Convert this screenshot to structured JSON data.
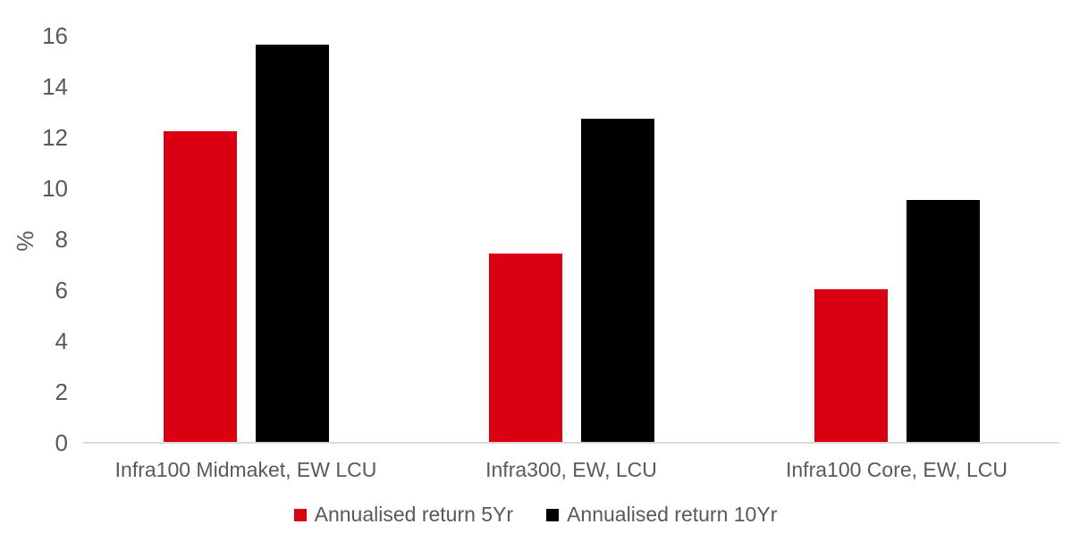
{
  "chart_data": {
    "type": "bar",
    "title": "",
    "categories": [
      "Infra100 Midmaket, EW LCU",
      "Infra300, EW, LCU",
      "Infra100 Core, EW, LCU"
    ],
    "series": [
      {
        "name": "Annualised return 5Yr",
        "color": "#da0011",
        "values": [
          12.2,
          7.4,
          6.0
        ]
      },
      {
        "name": "Annualised return 10Yr",
        "color": "#000000",
        "values": [
          15.6,
          12.7,
          9.5
        ]
      }
    ],
    "xlabel": "",
    "ylabel": "%",
    "ylim": [
      0,
      16
    ],
    "yticks": [
      0,
      2,
      4,
      6,
      8,
      10,
      12,
      14,
      16
    ],
    "grid": false,
    "legend_position": "bottom"
  },
  "colors": {
    "background": "#ffffff",
    "axis_line": "#d9d9d9",
    "label_text": "#595959"
  }
}
